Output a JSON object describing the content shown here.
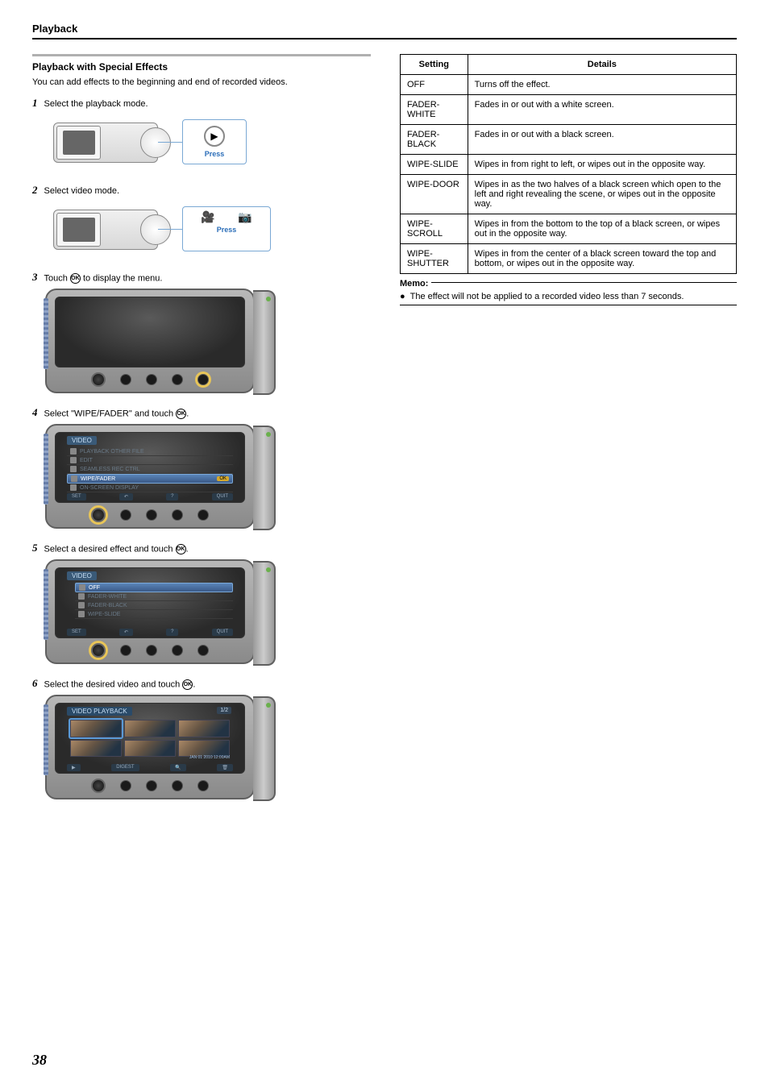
{
  "page": {
    "header": "Playback",
    "number": "38"
  },
  "section": {
    "title": "Playback with Special Effects",
    "intro": "You can add effects to the beginning and end of recorded videos."
  },
  "steps": [
    {
      "num": "1",
      "text_before": "Select the playback mode.",
      "text_after": ""
    },
    {
      "num": "2",
      "text_before": "Select video mode.",
      "text_after": ""
    },
    {
      "num": "3",
      "text_before": "Touch ",
      "text_after": " to display the menu."
    },
    {
      "num": "4",
      "text_before": "Select \"WIPE/FADER\" and touch ",
      "text_after": "."
    },
    {
      "num": "5",
      "text_before": "Select a desired effect and touch ",
      "text_after": "."
    },
    {
      "num": "6",
      "text_before": "Select the desired video and touch ",
      "text_after": "."
    }
  ],
  "callouts": {
    "press": "Press",
    "play_icon": "▶",
    "video_icon": "🎥",
    "still_icon": "📷"
  },
  "menu4": {
    "header": "VIDEO",
    "items": [
      "PLAYBACK OTHER FILE",
      "EDIT",
      "SEAMLESS REC CTRL",
      "WIPE/FADER",
      "ON-SCREEN DISPLAY"
    ],
    "selected_index": 3,
    "bottom": {
      "set": "SET",
      "back": "↶",
      "help": "?",
      "quit": "QUIT"
    },
    "ok_label": "OK"
  },
  "menu5": {
    "header": "VIDEO",
    "items": [
      "OFF",
      "FADER-WHITE",
      "FADER-BLACK",
      "WIPE-SLIDE"
    ],
    "selected_index": 0,
    "bottom": {
      "set": "SET",
      "back": "↶",
      "help": "?",
      "quit": "QUIT"
    }
  },
  "menu6": {
    "header": "VIDEO PLAYBACK",
    "page_ind": "1/2",
    "timestamp": "JAN 01 2010 12:00AM",
    "bottom": {
      "play": "▶",
      "digest": "DIGEST",
      "search": "🔍",
      "trash": "🗑"
    }
  },
  "table": {
    "headers": [
      "Setting",
      "Details"
    ],
    "rows": [
      [
        "OFF",
        "Turns off the effect."
      ],
      [
        "FADER-WHITE",
        "Fades in or out with a white screen."
      ],
      [
        "FADER-BLACK",
        "Fades in or out with a black screen."
      ],
      [
        "WIPE-SLIDE",
        "Wipes in from right to left, or wipes out in the opposite way."
      ],
      [
        "WIPE-DOOR",
        "Wipes in as the two halves of a black screen which open to the left and right revealing the scene, or wipes out in the opposite way."
      ],
      [
        "WIPE-SCROLL",
        "Wipes in from the bottom to the top of a black screen, or wipes out in the opposite way."
      ],
      [
        "WIPE-SHUTTER",
        "Wipes in from the center of a black screen toward the top and bottom, or wipes out in the opposite way."
      ]
    ]
  },
  "memo": {
    "label": "Memo:",
    "text": "The effect will not be applied to a recorded video less than 7 seconds."
  },
  "ok_glyph": "OK"
}
